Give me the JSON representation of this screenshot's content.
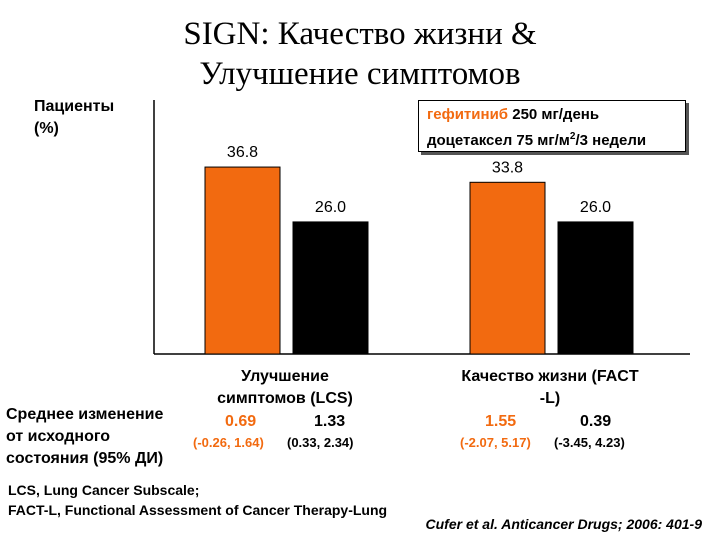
{
  "title_line1": "SIGN: Качество жизни &",
  "title_line2": "Улучшение симптомов",
  "y_label_line1": "Пациенты",
  "y_label_line2": "(%)",
  "legend": {
    "gefitinib_name": "гефитиниб",
    "gefitinib_dose": " 250 мг/день",
    "docetaxel_text": "доцетаксел 75 мг/м",
    "docetaxel_sup": "2",
    "docetaxel_tail": "/3 недели"
  },
  "colors": {
    "gefitinib": "#f26a10",
    "docetaxel": "#000000"
  },
  "chart_data": {
    "type": "bar",
    "categories": [
      "Улучшение симптомов (LCS)",
      "Качество жизни (FACT -L)"
    ],
    "series": [
      {
        "name": "гефитиниб 250 мг/день",
        "values": [
          36.8,
          33.8
        ]
      },
      {
        "name": "доцетаксел 75 мг/м2/3 недели",
        "values": [
          26.0,
          26.0
        ]
      }
    ],
    "value_labels": [
      [
        "36.8",
        "33.8"
      ],
      [
        "26.0",
        "26.0"
      ]
    ],
    "ylim": [
      0,
      50
    ],
    "ylabel": "Пациенты (%)"
  },
  "categories_display": {
    "lcs_line1": "Улучшение",
    "lcs_line2": "симптомов (LCS)",
    "fact_line1": "Качество жизни (FACT",
    "fact_line2": "-L)"
  },
  "mean_change": {
    "label_line1": "Среднее изменение",
    "label_line2": "от исходного",
    "label_line3": "состояния (95% ДИ)",
    "lcs_gef": "0.69",
    "lcs_doc": "1.33",
    "lcs_gef_ci": "(-0.26, 1.64)",
    "lcs_doc_ci": "(0.33, 2.34)",
    "fact_gef": "1.55",
    "fact_doc": "0.39",
    "fact_gef_ci": "(-2.07, 5.17)",
    "fact_doc_ci": "(-3.45, 4.23)"
  },
  "footer_line1": "LCS, Lung Cancer Subscale;",
  "footer_line2": "FACT-L, Functional Assessment of Cancer Therapy-Lung",
  "citation": "Cufer et al. Anticancer Drugs; 2006: 401-9"
}
